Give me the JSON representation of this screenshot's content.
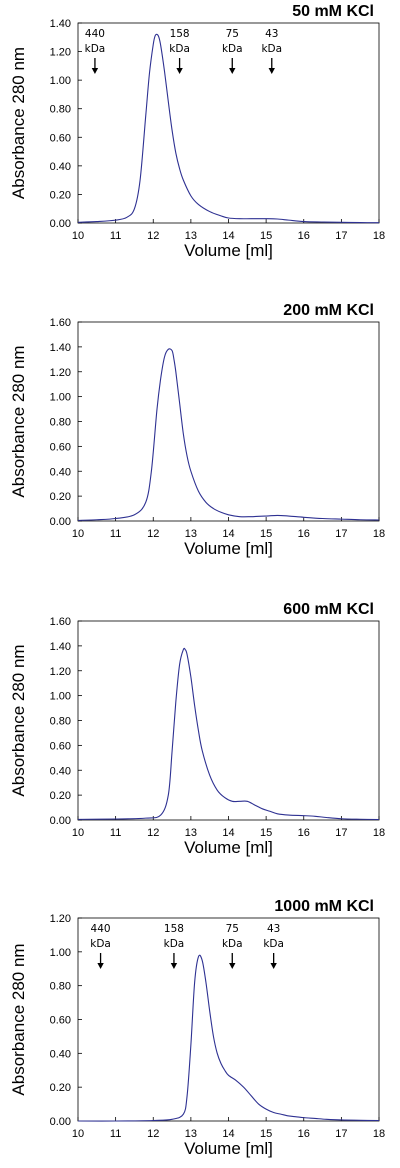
{
  "colors": {
    "trace": "#2e3192",
    "axis": "#000000"
  },
  "chart_data": [
    {
      "type": "line",
      "title": "50 mM KCl",
      "xlabel": "Volume [ml]",
      "ylabel": "Absorbance 280 nm",
      "xlim": [
        10,
        18
      ],
      "ylim": [
        0,
        1.4
      ],
      "xticks": [
        "10",
        "11",
        "12",
        "13",
        "14",
        "15",
        "16",
        "17",
        "18"
      ],
      "yticks": [
        "0.00",
        "0.20",
        "0.40",
        "0.60",
        "0.80",
        "1.00",
        "1.20",
        "1.40"
      ],
      "markers": [
        {
          "label": "440",
          "unit": "kDa",
          "x": 10.45
        },
        {
          "label": "158",
          "unit": "kDa",
          "x": 12.7
        },
        {
          "label": "75",
          "unit": "kDa",
          "x": 14.1
        },
        {
          "label": "43",
          "unit": "kDa",
          "x": 15.15
        }
      ],
      "series": [
        {
          "x": [
            10,
            10.5,
            11,
            11.3,
            11.5,
            11.65,
            11.8,
            11.9,
            12.0,
            12.05,
            12.1,
            12.15,
            12.2,
            12.3,
            12.4,
            12.5,
            12.6,
            12.7,
            12.8,
            13.0,
            13.2,
            13.5,
            13.8,
            14.0,
            14.3,
            14.6,
            15.0,
            15.3,
            15.6,
            16.0,
            16.5,
            17.0,
            17.5,
            18.0
          ],
          "y": [
            0.005,
            0.01,
            0.02,
            0.04,
            0.1,
            0.3,
            0.75,
            1.05,
            1.25,
            1.31,
            1.32,
            1.3,
            1.24,
            1.06,
            0.85,
            0.65,
            0.49,
            0.38,
            0.3,
            0.19,
            0.13,
            0.08,
            0.05,
            0.035,
            0.03,
            0.03,
            0.03,
            0.028,
            0.02,
            0.01,
            0.007,
            0.005,
            0.003,
            0.002
          ]
        }
      ]
    },
    {
      "type": "line",
      "title": "200 mM KCl",
      "xlabel": "Volume [ml]",
      "ylabel": "Absorbance 280 nm",
      "xlim": [
        10,
        18
      ],
      "ylim": [
        0,
        1.6
      ],
      "xticks": [
        "10",
        "11",
        "12",
        "13",
        "14",
        "15",
        "16",
        "17",
        "18"
      ],
      "yticks": [
        "0.00",
        "0.20",
        "0.40",
        "0.60",
        "0.80",
        "1.00",
        "1.20",
        "1.40",
        "1.60"
      ],
      "markers": [],
      "series": [
        {
          "x": [
            10,
            10.5,
            11,
            11.5,
            11.8,
            11.95,
            12.1,
            12.2,
            12.3,
            12.4,
            12.5,
            12.55,
            12.6,
            12.7,
            12.8,
            12.9,
            13.0,
            13.2,
            13.4,
            13.6,
            13.8,
            14.0,
            14.3,
            14.6,
            15.0,
            15.3,
            15.6,
            16.0,
            16.5,
            17.0,
            17.5,
            18.0
          ],
          "y": [
            0.005,
            0.01,
            0.02,
            0.05,
            0.15,
            0.4,
            0.9,
            1.15,
            1.32,
            1.38,
            1.37,
            1.3,
            1.2,
            0.95,
            0.7,
            0.52,
            0.4,
            0.24,
            0.15,
            0.1,
            0.07,
            0.05,
            0.035,
            0.035,
            0.04,
            0.045,
            0.04,
            0.03,
            0.02,
            0.015,
            0.01,
            0.008
          ]
        }
      ]
    },
    {
      "type": "line",
      "title": "600 mM KCl",
      "xlabel": "Volume [ml]",
      "ylabel": "Absorbance 280 nm",
      "xlim": [
        10,
        18
      ],
      "ylim": [
        0,
        1.6
      ],
      "xticks": [
        "10",
        "11",
        "12",
        "13",
        "14",
        "15",
        "16",
        "17",
        "18"
      ],
      "yticks": [
        "0.00",
        "0.20",
        "0.40",
        "0.60",
        "0.80",
        "1.00",
        "1.20",
        "1.40",
        "1.60"
      ],
      "markers": [],
      "series": [
        {
          "x": [
            10,
            11,
            11.8,
            12.2,
            12.4,
            12.5,
            12.6,
            12.7,
            12.8,
            12.85,
            12.9,
            13.0,
            13.1,
            13.2,
            13.3,
            13.5,
            13.7,
            13.9,
            14.1,
            14.3,
            14.5,
            14.7,
            14.9,
            15.1,
            15.3,
            15.6,
            16.0,
            16.3,
            16.6,
            17.0,
            17.5,
            18.0
          ],
          "y": [
            0.005,
            0.008,
            0.015,
            0.04,
            0.2,
            0.55,
            0.95,
            1.25,
            1.37,
            1.37,
            1.33,
            1.15,
            0.92,
            0.72,
            0.56,
            0.36,
            0.24,
            0.18,
            0.15,
            0.15,
            0.15,
            0.12,
            0.09,
            0.07,
            0.05,
            0.04,
            0.035,
            0.03,
            0.02,
            0.01,
            0.006,
            0.004
          ]
        }
      ]
    },
    {
      "type": "line",
      "title": "1000 mM KCl",
      "xlabel": "Volume [ml]",
      "ylabel": "Absorbance 280 nm",
      "xlim": [
        10,
        18
      ],
      "ylim": [
        0,
        1.2
      ],
      "xticks": [
        "10",
        "11",
        "12",
        "13",
        "14",
        "15",
        "16",
        "17",
        "18"
      ],
      "yticks": [
        "0.00",
        "0.20",
        "0.40",
        "0.60",
        "0.80",
        "1.00",
        "1.20"
      ],
      "markers": [
        {
          "label": "440",
          "unit": "kDa",
          "x": 10.6
        },
        {
          "label": "158",
          "unit": "kDa",
          "x": 12.55
        },
        {
          "label": "75",
          "unit": "kDa",
          "x": 14.1
        },
        {
          "label": "43",
          "unit": "kDa",
          "x": 15.2
        }
      ],
      "series": [
        {
          "x": [
            10,
            11,
            12,
            12.5,
            12.8,
            12.9,
            13.0,
            13.1,
            13.2,
            13.3,
            13.4,
            13.5,
            13.6,
            13.7,
            13.8,
            13.9,
            14.0,
            14.2,
            14.4,
            14.6,
            14.8,
            15.0,
            15.2,
            15.4,
            15.6,
            15.8,
            16.0,
            16.3,
            16.6,
            17.0,
            17.5,
            18.0
          ],
          "y": [
            0.0,
            0.0,
            0.003,
            0.01,
            0.04,
            0.15,
            0.45,
            0.82,
            0.97,
            0.95,
            0.82,
            0.65,
            0.5,
            0.4,
            0.34,
            0.3,
            0.27,
            0.24,
            0.2,
            0.15,
            0.1,
            0.07,
            0.05,
            0.04,
            0.03,
            0.025,
            0.02,
            0.015,
            0.01,
            0.006,
            0.004,
            0.003
          ]
        }
      ]
    }
  ]
}
